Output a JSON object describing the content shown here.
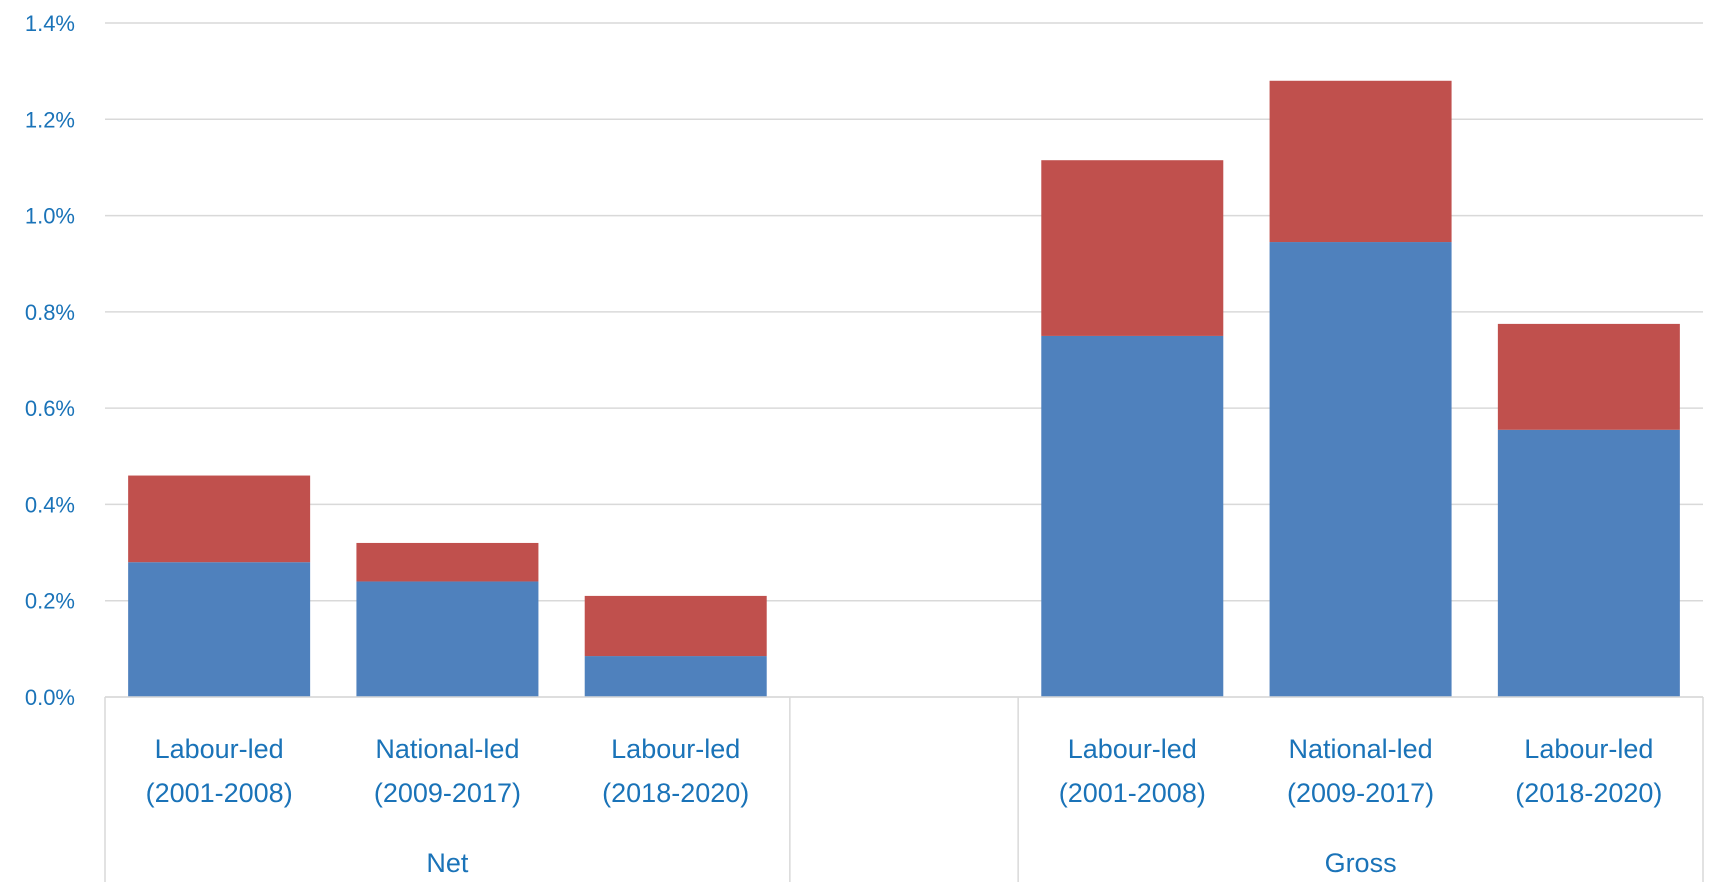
{
  "chart_data": {
    "type": "bar",
    "stacked": true,
    "groups": [
      {
        "label": "Net",
        "categories": [
          [
            "Labour-led",
            "(2001-2008)"
          ],
          [
            "National-led",
            "(2009-2017)"
          ],
          [
            "Labour-led",
            "(2018-2020)"
          ]
        ]
      },
      {
        "label": "Gross",
        "categories": [
          [
            "Labour-led",
            "(2001-2008)"
          ],
          [
            "National-led",
            "(2009-2017)"
          ],
          [
            "Labour-led",
            "(2018-2020)"
          ]
        ]
      }
    ],
    "series": [
      {
        "values": [
          0.28,
          0.24,
          0.085,
          0.75,
          0.945,
          0.555
        ]
      },
      {
        "values": [
          0.18,
          0.08,
          0.125,
          0.365,
          0.335,
          0.22
        ]
      }
    ],
    "colors": [
      "#4f81bd",
      "#c0504d"
    ],
    "ylim": [
      0,
      1.4
    ],
    "yticks": [
      "0.0%",
      "0.2%",
      "0.4%",
      "0.6%",
      "0.8%",
      "1.0%",
      "1.2%",
      "1.4%"
    ],
    "grid": true,
    "legend": "none",
    "title": "",
    "xlabel": "",
    "ylabel": ""
  }
}
